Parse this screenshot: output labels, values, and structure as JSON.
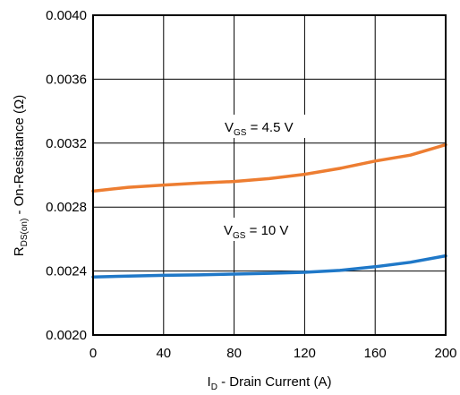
{
  "chart_data": {
    "type": "line",
    "x_ticks": [
      0,
      40,
      80,
      120,
      160,
      200
    ],
    "y_ticks": [
      "0.0020",
      "0.0024",
      "0.0028",
      "0.0032",
      "0.0036",
      "0.0040"
    ],
    "xlim": [
      0,
      200
    ],
    "ylim": [
      0.002,
      0.004
    ],
    "grid": true,
    "xlabel": {
      "main": "I",
      "sub": "D",
      "rest": " - Drain Current (A)"
    },
    "ylabel": {
      "main": "R",
      "sub": "DS(on)",
      "rest": " - On-Resistance (Ω)"
    },
    "series": [
      {
        "label": {
          "main": "V",
          "sub": "GS",
          "rest": " = 4.5 V"
        },
        "color": "#ED7D31",
        "x": [
          0,
          20,
          40,
          60,
          80,
          100,
          120,
          140,
          160,
          180,
          200
        ],
        "y": [
          0.0029,
          0.002924,
          0.002938,
          0.00295,
          0.00296,
          0.002978,
          0.003005,
          0.003042,
          0.003088,
          0.003125,
          0.00319
        ]
      },
      {
        "label": {
          "main": "V",
          "sub": "GS",
          "rest": " = 10 V"
        },
        "color": "#1F78C8",
        "x": [
          0,
          20,
          40,
          60,
          80,
          100,
          120,
          140,
          160,
          180,
          200
        ],
        "y": [
          0.002363,
          0.002368,
          0.002373,
          0.002376,
          0.002381,
          0.002386,
          0.002392,
          0.002404,
          0.002427,
          0.002455,
          0.002495
        ]
      }
    ]
  }
}
